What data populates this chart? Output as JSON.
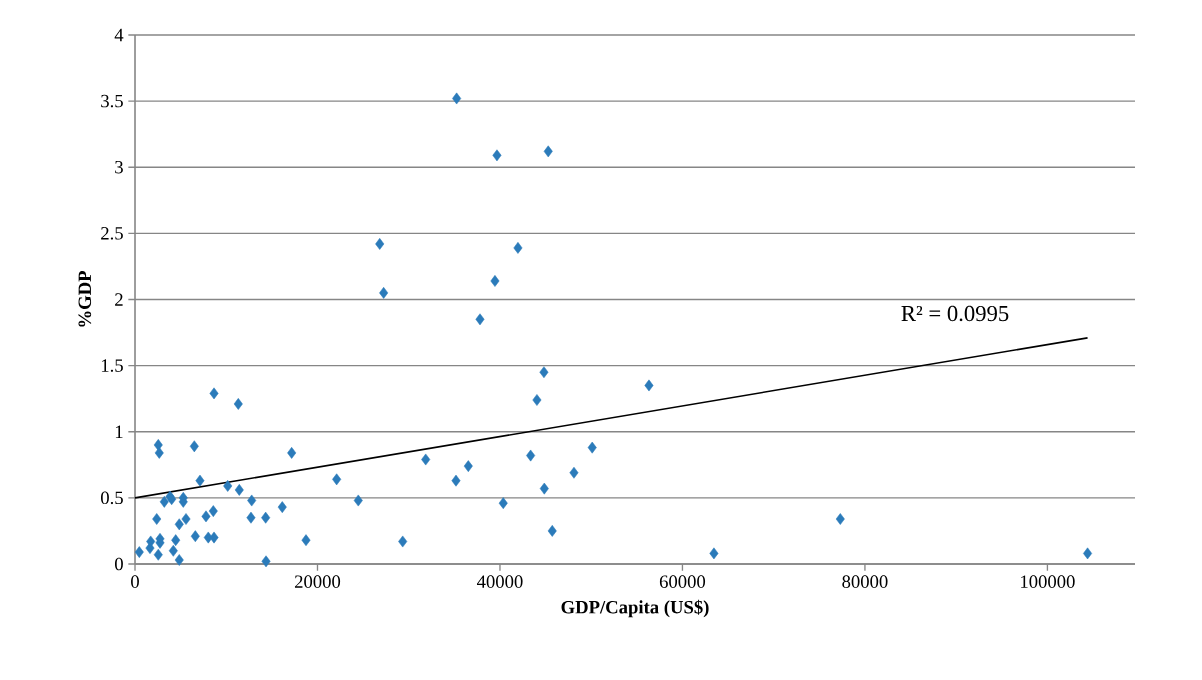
{
  "chart_data": {
    "type": "scatter",
    "xlabel": "GDP/Capita (US$)",
    "ylabel": "%GDP",
    "xlim": [
      0,
      109600
    ],
    "ylim": [
      0,
      4
    ],
    "xticks": [
      0,
      20000,
      40000,
      60000,
      80000,
      100000
    ],
    "yticks": [
      0,
      0.5,
      1,
      1.5,
      2,
      2.5,
      3,
      3.5,
      4
    ],
    "grid": "y",
    "annotations": [
      "R² = 0.0995"
    ],
    "series": [
      {
        "marker": "diamond",
        "color": "#2b7bba",
        "x": [
          470,
          1640,
          1720,
          2550,
          2740,
          2740,
          2380,
          2550,
          2660,
          3210,
          3840,
          4020,
          4200,
          4460,
          4850,
          4850,
          5290,
          5290,
          5590,
          6500,
          6610,
          7120,
          7780,
          8030,
          8580,
          8660,
          8660,
          10160,
          11320,
          11430,
          12790,
          12710,
          14320,
          14360,
          16140,
          17170,
          18740,
          22100,
          24470,
          29340,
          31860,
          35180,
          36530,
          40360,
          43360,
          44820,
          44050,
          44860,
          45730,
          48110,
          50110,
          35250,
          39670,
          45290,
          26820,
          41970,
          39450,
          27250,
          37810,
          56330,
          63450,
          77300,
          104400
        ],
        "values": [
          0.09,
          0.12,
          0.17,
          0.07,
          0.19,
          0.16,
          0.34,
          0.9,
          0.84,
          0.47,
          0.51,
          0.49,
          0.1,
          0.18,
          0.03,
          0.3,
          0.5,
          0.47,
          0.34,
          0.89,
          0.21,
          0.63,
          0.36,
          0.2,
          0.4,
          0.2,
          1.29,
          0.59,
          1.21,
          0.56,
          0.48,
          0.35,
          0.35,
          0.02,
          0.43,
          0.84,
          0.18,
          0.64,
          0.48,
          0.17,
          0.79,
          0.63,
          0.74,
          0.46,
          0.82,
          1.45,
          1.24,
          0.57,
          0.25,
          0.69,
          0.88,
          3.52,
          3.09,
          3.12,
          2.42,
          2.39,
          2.14,
          2.05,
          1.85,
          1.35,
          0.08,
          0.34,
          0.08
        ]
      },
      {
        "type": "line",
        "marker": "none",
        "color": "#000000",
        "x": [
          0,
          104400
        ],
        "values": [
          0.5,
          1.71
        ]
      }
    ]
  }
}
